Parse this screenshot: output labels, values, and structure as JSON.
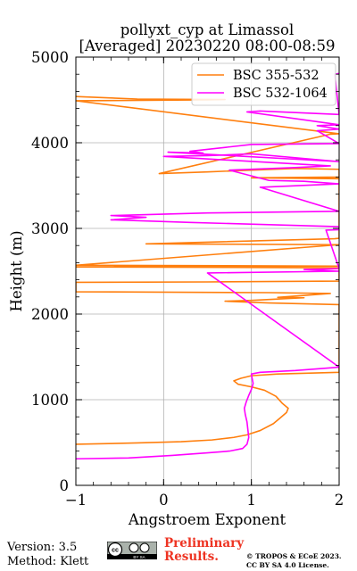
{
  "title": {
    "line1": "pollyxt_cyp at Limassol",
    "line2": "[Averaged] 20230220 08:00-08:59"
  },
  "footer": {
    "version_label": "Version: 3.5",
    "method_label": "Method: Klett",
    "preliminary_line1": "Preliminary",
    "preliminary_line2": "Results.",
    "copyright_line1": "© TROPOS & ECoE 2023.",
    "copyright_line2": "CC BY SA 4.0 License.",
    "license_badge_text": "BY SA"
  },
  "chart_data": {
    "type": "line",
    "orientation": "profile",
    "xlabel": "Angstroem Exponent",
    "ylabel": "Height (m)",
    "xlim": [
      -1,
      2
    ],
    "ylim": [
      0,
      5000
    ],
    "xticks": [
      -1,
      0,
      1,
      2
    ],
    "yticks": [
      0,
      1000,
      2000,
      3000,
      4000,
      5000
    ],
    "xtick_labels": [
      "−1",
      "0",
      "1",
      "2"
    ],
    "ytick_labels": [
      "0",
      "1000",
      "2000",
      "3000",
      "4000",
      "5000"
    ],
    "grid": true,
    "legend_position": "top-right",
    "series": [
      {
        "name": "BSC 355-532",
        "color": "#ff7f0e",
        "points": [
          [
            -1.0,
            480
          ],
          [
            -0.3,
            495
          ],
          [
            0.2,
            510
          ],
          [
            0.55,
            530
          ],
          [
            0.8,
            560
          ],
          [
            0.95,
            590
          ],
          [
            1.1,
            640
          ],
          [
            1.25,
            720
          ],
          [
            1.32,
            780
          ],
          [
            1.4,
            850
          ],
          [
            1.42,
            900
          ],
          [
            1.35,
            960
          ],
          [
            1.28,
            1040
          ],
          [
            1.15,
            1110
          ],
          [
            1.0,
            1150
          ],
          [
            0.85,
            1180
          ],
          [
            0.8,
            1220
          ],
          [
            0.88,
            1250
          ],
          [
            1.0,
            1280
          ],
          [
            1.3,
            1300
          ],
          [
            2.0,
            1320
          ],
          [
            2.0,
            2110
          ],
          [
            1.2,
            2130
          ],
          [
            0.7,
            2150
          ],
          [
            1.0,
            2160
          ],
          [
            1.4,
            2180
          ],
          [
            1.6,
            2190
          ],
          [
            1.3,
            2195
          ],
          [
            1.9,
            2240
          ],
          [
            1.2,
            2250
          ],
          [
            -1.0,
            2260
          ],
          [
            -1.0,
            2370
          ],
          [
            0.5,
            2375
          ],
          [
            2.0,
            2385
          ],
          [
            2.0,
            2540
          ],
          [
            -1.0,
            2550
          ],
          [
            2.0,
            2560
          ],
          [
            -1.0,
            2570
          ],
          [
            2.0,
            2810
          ],
          [
            -0.2,
            2820
          ],
          [
            1.95,
            2880
          ],
          [
            2.0,
            2885
          ],
          [
            2.0,
            3580
          ],
          [
            1.0,
            3590
          ],
          [
            2.0,
            3600
          ],
          [
            2.0,
            3690
          ],
          [
            1.5,
            3700
          ],
          [
            0.5,
            3660
          ],
          [
            -0.05,
            3640
          ],
          [
            1.9,
            4100
          ],
          [
            2.0,
            4105
          ],
          [
            -1.0,
            4490
          ],
          [
            0.5,
            4500
          ],
          [
            0.7,
            4505
          ],
          [
            -0.3,
            4510
          ],
          [
            -1.0,
            4540
          ]
        ]
      },
      {
        "name": "BSC 532-1064",
        "color": "#ff00ff",
        "points": [
          [
            -1.0,
            310
          ],
          [
            -0.4,
            320
          ],
          [
            0.1,
            350
          ],
          [
            0.5,
            380
          ],
          [
            0.75,
            400
          ],
          [
            0.9,
            430
          ],
          [
            0.95,
            480
          ],
          [
            0.97,
            560
          ],
          [
            0.96,
            650
          ],
          [
            0.95,
            740
          ],
          [
            0.93,
            830
          ],
          [
            0.92,
            900
          ],
          [
            0.94,
            970
          ],
          [
            0.97,
            1050
          ],
          [
            1.0,
            1120
          ],
          [
            1.02,
            1190
          ],
          [
            1.01,
            1240
          ],
          [
            1.0,
            1300
          ],
          [
            1.1,
            1320
          ],
          [
            1.5,
            1340
          ],
          [
            2.0,
            1380
          ],
          [
            0.5,
            2480
          ],
          [
            2.0,
            2500
          ],
          [
            1.6,
            2520
          ],
          [
            2.0,
            2530
          ],
          [
            1.85,
            2980
          ],
          [
            2.0,
            2985
          ],
          [
            2.0,
            3020
          ],
          [
            0.3,
            3070
          ],
          [
            -0.6,
            3100
          ],
          [
            -0.2,
            3130
          ],
          [
            -0.6,
            3150
          ],
          [
            0.5,
            3180
          ],
          [
            2.0,
            3200
          ],
          [
            1.1,
            3480
          ],
          [
            2.0,
            3520
          ],
          [
            1.6,
            3550
          ],
          [
            1.2,
            3560
          ],
          [
            0.75,
            3680
          ],
          [
            1.5,
            3710
          ],
          [
            1.9,
            3730
          ],
          [
            0.0,
            3840
          ],
          [
            0.5,
            3850
          ],
          [
            1.0,
            3870
          ],
          [
            2.0,
            3780
          ],
          [
            0.05,
            3890
          ],
          [
            0.45,
            3880
          ],
          [
            0.3,
            3900
          ],
          [
            1.0,
            3980
          ],
          [
            2.0,
            3990
          ],
          [
            1.75,
            4140
          ],
          [
            2.0,
            4160
          ],
          [
            1.75,
            4200
          ],
          [
            2.0,
            4210
          ],
          [
            0.95,
            4360
          ],
          [
            1.1,
            4370
          ],
          [
            2.0,
            4330
          ],
          [
            1.95,
            4800
          ],
          [
            2.0,
            4810
          ]
        ]
      }
    ]
  }
}
